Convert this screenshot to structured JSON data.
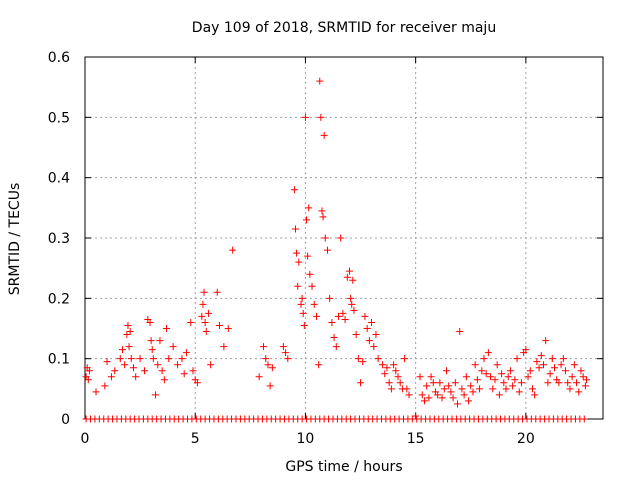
{
  "chart_data": {
    "type": "scatter",
    "title": "Day 109 of 2018, SRMTID for receiver maju",
    "xlabel": "GPS time / hours",
    "ylabel": "SRMTID / TECUs",
    "xlim": [
      0,
      23.5
    ],
    "ylim": [
      0,
      0.6
    ],
    "x_ticks": [
      0,
      5,
      10,
      15,
      20
    ],
    "y_ticks": [
      0,
      0.1,
      0.2,
      0.3,
      0.4,
      0.5,
      0.6
    ],
    "x_tick_labels": [
      "0",
      "5",
      "10",
      "15",
      "20"
    ],
    "y_tick_labels": [
      "0",
      "0.1",
      "0.2",
      "0.3",
      "0.4",
      "0.5",
      "0.6"
    ],
    "grid": true,
    "marker": "+",
    "color": "#ff0000",
    "series": [
      {
        "name": "SRMTID",
        "points": [
          [
            0.05,
            0.07
          ],
          [
            0.1,
            0.085
          ],
          [
            0.15,
            0.065
          ],
          [
            0.2,
            0.08
          ],
          [
            0.5,
            0.045
          ],
          [
            0.9,
            0.055
          ],
          [
            1.0,
            0.095
          ],
          [
            1.2,
            0.07
          ],
          [
            1.35,
            0.08
          ],
          [
            1.6,
            0.1
          ],
          [
            1.7,
            0.115
          ],
          [
            1.8,
            0.09
          ],
          [
            1.9,
            0.14
          ],
          [
            1.95,
            0.155
          ],
          [
            2.0,
            0.12
          ],
          [
            2.05,
            0.145
          ],
          [
            2.1,
            0.1
          ],
          [
            2.2,
            0.085
          ],
          [
            2.3,
            0.07
          ],
          [
            2.5,
            0.1
          ],
          [
            2.7,
            0.08
          ],
          [
            2.85,
            0.165
          ],
          [
            2.95,
            0.16
          ],
          [
            3.0,
            0.13
          ],
          [
            3.05,
            0.115
          ],
          [
            3.1,
            0.1
          ],
          [
            3.2,
            0.04
          ],
          [
            3.3,
            0.09
          ],
          [
            3.4,
            0.13
          ],
          [
            3.5,
            0.08
          ],
          [
            3.6,
            0.065
          ],
          [
            3.7,
            0.15
          ],
          [
            3.8,
            0.1
          ],
          [
            4.0,
            0.12
          ],
          [
            4.2,
            0.09
          ],
          [
            4.4,
            0.1
          ],
          [
            4.5,
            0.075
          ],
          [
            4.6,
            0.11
          ],
          [
            4.8,
            0.16
          ],
          [
            4.9,
            0.08
          ],
          [
            5.0,
            0.065
          ],
          [
            5.1,
            0.06
          ],
          [
            5.3,
            0.17
          ],
          [
            5.35,
            0.19
          ],
          [
            5.4,
            0.21
          ],
          [
            5.45,
            0.16
          ],
          [
            5.5,
            0.145
          ],
          [
            5.6,
            0.175
          ],
          [
            5.7,
            0.09
          ],
          [
            6.0,
            0.21
          ],
          [
            6.1,
            0.155
          ],
          [
            6.3,
            0.12
          ],
          [
            6.5,
            0.15
          ],
          [
            6.7,
            0.28
          ],
          [
            7.9,
            0.07
          ],
          [
            8.1,
            0.12
          ],
          [
            8.2,
            0.1
          ],
          [
            8.3,
            0.09
          ],
          [
            8.4,
            0.055
          ],
          [
            8.5,
            0.085
          ],
          [
            9.0,
            0.12
          ],
          [
            9.1,
            0.11
          ],
          [
            9.2,
            0.1
          ],
          [
            9.5,
            0.38
          ],
          [
            9.55,
            0.315
          ],
          [
            9.6,
            0.275
          ],
          [
            9.65,
            0.22
          ],
          [
            9.7,
            0.26
          ],
          [
            9.8,
            0.19
          ],
          [
            9.85,
            0.2
          ],
          [
            9.9,
            0.175
          ],
          [
            9.95,
            0.155
          ],
          [
            10.0,
            0.5
          ],
          [
            10.05,
            0.33
          ],
          [
            10.1,
            0.27
          ],
          [
            10.15,
            0.35
          ],
          [
            10.2,
            0.24
          ],
          [
            10.3,
            0.22
          ],
          [
            10.4,
            0.19
          ],
          [
            10.5,
            0.17
          ],
          [
            10.6,
            0.09
          ],
          [
            10.65,
            0.56
          ],
          [
            10.7,
            0.5
          ],
          [
            10.75,
            0.345
          ],
          [
            10.8,
            0.335
          ],
          [
            10.85,
            0.47
          ],
          [
            10.9,
            0.3
          ],
          [
            11.0,
            0.28
          ],
          [
            11.1,
            0.2
          ],
          [
            11.2,
            0.16
          ],
          [
            11.3,
            0.135
          ],
          [
            11.4,
            0.12
          ],
          [
            11.5,
            0.17
          ],
          [
            11.6,
            0.3
          ],
          [
            11.7,
            0.175
          ],
          [
            11.8,
            0.165
          ],
          [
            11.9,
            0.235
          ],
          [
            12.0,
            0.245
          ],
          [
            12.05,
            0.2
          ],
          [
            12.1,
            0.19
          ],
          [
            12.15,
            0.23
          ],
          [
            12.2,
            0.18
          ],
          [
            12.3,
            0.14
          ],
          [
            12.4,
            0.1
          ],
          [
            12.5,
            0.06
          ],
          [
            12.6,
            0.095
          ],
          [
            12.7,
            0.17
          ],
          [
            12.8,
            0.15
          ],
          [
            12.9,
            0.13
          ],
          [
            13.0,
            0.16
          ],
          [
            13.1,
            0.12
          ],
          [
            13.2,
            0.14
          ],
          [
            13.3,
            0.1
          ],
          [
            13.5,
            0.09
          ],
          [
            13.6,
            0.075
          ],
          [
            13.7,
            0.085
          ],
          [
            13.8,
            0.06
          ],
          [
            13.9,
            0.05
          ],
          [
            14.0,
            0.09
          ],
          [
            14.1,
            0.08
          ],
          [
            14.2,
            0.07
          ],
          [
            14.3,
            0.06
          ],
          [
            14.4,
            0.05
          ],
          [
            14.5,
            0.1
          ],
          [
            14.6,
            0.05
          ],
          [
            14.7,
            0.04
          ],
          [
            15.0,
            0.005
          ],
          [
            15.2,
            0.07
          ],
          [
            15.3,
            0.04
          ],
          [
            15.4,
            0.03
          ],
          [
            15.5,
            0.055
          ],
          [
            15.6,
            0.035
          ],
          [
            15.7,
            0.07
          ],
          [
            15.8,
            0.06
          ],
          [
            15.9,
            0.045
          ],
          [
            16.0,
            0.04
          ],
          [
            16.1,
            0.06
          ],
          [
            16.2,
            0.035
          ],
          [
            16.3,
            0.05
          ],
          [
            16.4,
            0.08
          ],
          [
            16.5,
            0.055
          ],
          [
            16.6,
            0.045
          ],
          [
            16.7,
            0.035
          ],
          [
            16.8,
            0.06
          ],
          [
            16.9,
            0.025
          ],
          [
            17.0,
            0.145
          ],
          [
            17.1,
            0.05
          ],
          [
            17.2,
            0.04
          ],
          [
            17.3,
            0.07
          ],
          [
            17.4,
            0.03
          ],
          [
            17.5,
            0.055
          ],
          [
            17.6,
            0.045
          ],
          [
            17.7,
            0.09
          ],
          [
            17.8,
            0.065
          ],
          [
            17.9,
            0.05
          ],
          [
            18.0,
            0.08
          ],
          [
            18.1,
            0.1
          ],
          [
            18.2,
            0.075
          ],
          [
            18.3,
            0.11
          ],
          [
            18.4,
            0.07
          ],
          [
            18.5,
            0.05
          ],
          [
            18.6,
            0.065
          ],
          [
            18.7,
            0.09
          ],
          [
            18.8,
            0.04
          ],
          [
            18.9,
            0.075
          ],
          [
            19.0,
            0.06
          ],
          [
            19.1,
            0.05
          ],
          [
            19.2,
            0.07
          ],
          [
            19.3,
            0.08
          ],
          [
            19.4,
            0.055
          ],
          [
            19.5,
            0.065
          ],
          [
            19.6,
            0.1
          ],
          [
            19.7,
            0.045
          ],
          [
            19.8,
            0.06
          ],
          [
            19.9,
            0.11
          ],
          [
            20.0,
            0.115
          ],
          [
            20.1,
            0.07
          ],
          [
            20.2,
            0.08
          ],
          [
            20.3,
            0.05
          ],
          [
            20.4,
            0.04
          ],
          [
            20.5,
            0.095
          ],
          [
            20.6,
            0.085
          ],
          [
            20.7,
            0.105
          ],
          [
            20.8,
            0.09
          ],
          [
            20.9,
            0.13
          ],
          [
            21.0,
            0.06
          ],
          [
            21.1,
            0.075
          ],
          [
            21.2,
            0.1
          ],
          [
            21.3,
            0.085
          ],
          [
            21.4,
            0.065
          ],
          [
            21.5,
            0.06
          ],
          [
            21.6,
            0.09
          ],
          [
            21.7,
            0.1
          ],
          [
            21.8,
            0.08
          ],
          [
            21.9,
            0.06
          ],
          [
            22.0,
            0.05
          ],
          [
            22.1,
            0.07
          ],
          [
            22.2,
            0.09
          ],
          [
            22.3,
            0.06
          ],
          [
            22.4,
            0.045
          ],
          [
            22.5,
            0.08
          ],
          [
            22.6,
            0.07
          ],
          [
            22.7,
            0.055
          ],
          [
            22.75,
            0.065
          ]
        ],
        "zero_band": {
          "y": 0,
          "x_start": 0.05,
          "x_end": 22.75,
          "step": 0.2
        }
      }
    ]
  }
}
